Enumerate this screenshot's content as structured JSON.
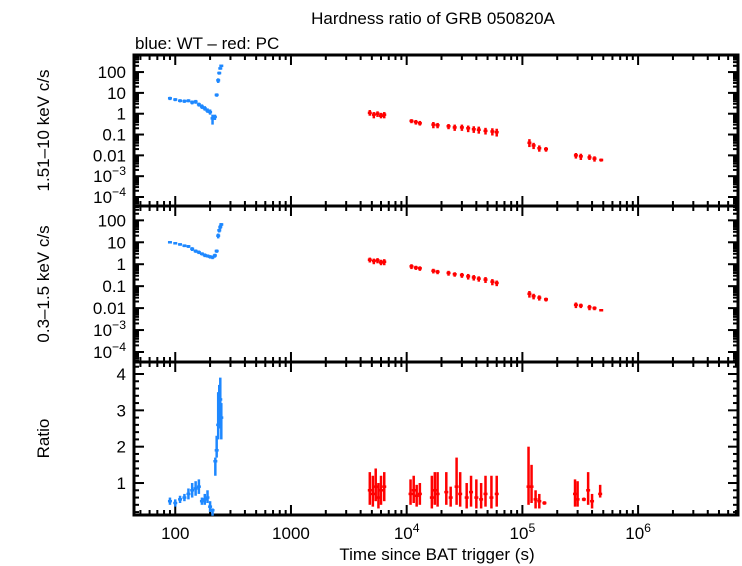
{
  "chart_data": [
    {
      "type": "scatter",
      "title": "Hardness ratio of GRB 050820A",
      "subtitle": "blue: WT – red: PC",
      "ylabel": "1.51–10 keV c/s",
      "yscale": "log",
      "xscale": "log",
      "ylim": [
        3.7e-05,
        660
      ],
      "yticks": [
        {
          "v": 100,
          "label": "100"
        },
        {
          "v": 10,
          "label": "10"
        },
        {
          "v": 1,
          "label": "1"
        },
        {
          "v": 0.1,
          "label": "0.1"
        },
        {
          "v": 0.01,
          "label": "0.01"
        },
        {
          "v": 0.001,
          "label": "10",
          "sup": "−3"
        },
        {
          "v": 0.0001,
          "label": "10",
          "sup": "−4"
        }
      ],
      "series": [
        {
          "mode": "WT",
          "color": "#1e88ff",
          "points": [
            [
              90,
              5.5,
              4.5,
              6.5
            ],
            [
              100,
              4.8,
              4,
              5.6
            ],
            [
              110,
              4.2,
              3.5,
              5
            ],
            [
              120,
              4,
              3.3,
              4.8
            ],
            [
              130,
              4.2,
              3.5,
              5
            ],
            [
              140,
              3.5,
              2.8,
              4.3
            ],
            [
              150,
              3.8,
              3,
              4.6
            ],
            [
              160,
              2.8,
              2.2,
              3.4
            ],
            [
              170,
              2.2,
              1.7,
              2.8
            ],
            [
              180,
              1.8,
              1.4,
              2.3
            ],
            [
              190,
              1.4,
              1.1,
              1.8
            ],
            [
              200,
              1.2,
              0.9,
              1.6
            ],
            [
              210,
              0.6,
              0.3,
              0.9
            ],
            [
              220,
              0.7,
              0.5,
              0.9
            ],
            [
              228,
              8,
              6.5,
              9.5
            ],
            [
              235,
              40,
              30,
              50
            ],
            [
              240,
              90,
              75,
              105
            ],
            [
              245,
              150,
              130,
              170
            ],
            [
              250,
              200,
              180,
              220
            ]
          ]
        },
        {
          "mode": "PC",
          "color": "#ff0000",
          "points": [
            [
              4800,
              1.1,
              0.8,
              1.5
            ],
            [
              5200,
              0.9,
              0.6,
              1.2
            ],
            [
              5600,
              1.0,
              0.7,
              1.3
            ],
            [
              6000,
              0.8,
              0.6,
              1.1
            ],
            [
              6400,
              0.9,
              0.6,
              1.2
            ],
            [
              11000,
              0.45,
              0.35,
              0.55
            ],
            [
              12000,
              0.4,
              0.3,
              0.5
            ],
            [
              13000,
              0.35,
              0.27,
              0.45
            ],
            [
              17000,
              0.3,
              0.2,
              0.4
            ],
            [
              18500,
              0.28,
              0.2,
              0.36
            ],
            [
              23000,
              0.25,
              0.18,
              0.32
            ],
            [
              26000,
              0.22,
              0.15,
              0.3
            ],
            [
              30000,
              0.22,
              0.15,
              0.3
            ],
            [
              34000,
              0.2,
              0.13,
              0.27
            ],
            [
              38000,
              0.18,
              0.12,
              0.25
            ],
            [
              42000,
              0.17,
              0.11,
              0.24
            ],
            [
              48000,
              0.15,
              0.1,
              0.21
            ],
            [
              55000,
              0.14,
              0.09,
              0.2
            ],
            [
              60000,
              0.13,
              0.08,
              0.19
            ],
            [
              115000,
              0.04,
              0.025,
              0.06
            ],
            [
              125000,
              0.03,
              0.02,
              0.04
            ],
            [
              140000,
              0.022,
              0.015,
              0.03
            ],
            [
              160000,
              0.02,
              0.015,
              0.025
            ],
            [
              290000,
              0.01,
              0.007,
              0.013
            ],
            [
              320000,
              0.009,
              0.006,
              0.012
            ],
            [
              380000,
              0.008,
              0.006,
              0.011
            ],
            [
              420000,
              0.007,
              0.005,
              0.009
            ],
            [
              480000,
              0.006,
              0.005,
              0.007
            ]
          ]
        }
      ]
    },
    {
      "type": "scatter",
      "ylabel": "0.3–1.5 keV c/s",
      "yscale": "log",
      "xscale": "log",
      "ylim": [
        3.5e-05,
        450
      ],
      "yticks": [
        {
          "v": 100,
          "label": "100"
        },
        {
          "v": 10,
          "label": "10"
        },
        {
          "v": 1,
          "label": "1"
        },
        {
          "v": 0.1,
          "label": "0.1"
        },
        {
          "v": 0.01,
          "label": "0.01"
        },
        {
          "v": 0.001,
          "label": "10",
          "sup": "−3"
        },
        {
          "v": 0.0001,
          "label": "10",
          "sup": "−4"
        }
      ],
      "series": [
        {
          "mode": "WT",
          "color": "#1e88ff",
          "points": [
            [
              90,
              10,
              9,
              11
            ],
            [
              100,
              9,
              8,
              10
            ],
            [
              110,
              8,
              7,
              9
            ],
            [
              120,
              7,
              6,
              8
            ],
            [
              130,
              6.5,
              5.5,
              7.5
            ],
            [
              140,
              5,
              4,
              6
            ],
            [
              150,
              4,
              3.3,
              4.7
            ],
            [
              160,
              3.5,
              2.9,
              4.2
            ],
            [
              170,
              3,
              2.5,
              3.5
            ],
            [
              180,
              2.6,
              2.1,
              3.1
            ],
            [
              190,
              2.4,
              2,
              2.8
            ],
            [
              200,
              2.2,
              1.8,
              2.6
            ],
            [
              210,
              2.1,
              1.7,
              2.5
            ],
            [
              220,
              2.5,
              2,
              3
            ],
            [
              228,
              4,
              3.3,
              4.7
            ],
            [
              235,
              20,
              15,
              25
            ],
            [
              240,
              35,
              28,
              42
            ],
            [
              245,
              50,
              40,
              60
            ],
            [
              250,
              65,
              55,
              75
            ]
          ]
        },
        {
          "mode": "PC",
          "color": "#ff0000",
          "points": [
            [
              4800,
              1.6,
              1.2,
              2
            ],
            [
              5200,
              1.4,
              1,
              1.8
            ],
            [
              5600,
              1.5,
              1.1,
              1.9
            ],
            [
              6000,
              1.2,
              0.9,
              1.6
            ],
            [
              6400,
              1.3,
              0.9,
              1.7
            ],
            [
              11000,
              0.8,
              0.6,
              1
            ],
            [
              12000,
              0.7,
              0.55,
              0.85
            ],
            [
              13000,
              0.65,
              0.5,
              0.8
            ],
            [
              17000,
              0.5,
              0.38,
              0.62
            ],
            [
              18500,
              0.45,
              0.35,
              0.55
            ],
            [
              23000,
              0.4,
              0.3,
              0.5
            ],
            [
              26000,
              0.35,
              0.27,
              0.43
            ],
            [
              30000,
              0.32,
              0.24,
              0.4
            ],
            [
              34000,
              0.28,
              0.2,
              0.36
            ],
            [
              38000,
              0.25,
              0.18,
              0.32
            ],
            [
              42000,
              0.22,
              0.16,
              0.28
            ],
            [
              48000,
              0.2,
              0.14,
              0.26
            ],
            [
              55000,
              0.16,
              0.11,
              0.21
            ],
            [
              60000,
              0.14,
              0.1,
              0.18
            ],
            [
              115000,
              0.045,
              0.03,
              0.06
            ],
            [
              125000,
              0.035,
              0.025,
              0.045
            ],
            [
              140000,
              0.03,
              0.022,
              0.038
            ],
            [
              160000,
              0.025,
              0.02,
              0.03
            ],
            [
              290000,
              0.014,
              0.01,
              0.018
            ],
            [
              320000,
              0.013,
              0.01,
              0.016
            ],
            [
              380000,
              0.011,
              0.008,
              0.014
            ],
            [
              420000,
              0.01,
              0.008,
              0.012
            ],
            [
              480000,
              0.008,
              0.007,
              0.009
            ]
          ]
        }
      ]
    },
    {
      "type": "scatter",
      "ylabel": "Ratio",
      "yscale": "linear",
      "xscale": "log",
      "ylim": [
        0.12,
        4.33
      ],
      "yticks": [
        {
          "v": 1,
          "label": "1"
        },
        {
          "v": 2,
          "label": "2"
        },
        {
          "v": 3,
          "label": "3"
        },
        {
          "v": 4,
          "label": "4"
        }
      ],
      "xlabel": "Time since BAT trigger (s)",
      "xlim": [
        44,
        7300000
      ],
      "xticks": [
        {
          "v": 100,
          "label": "100"
        },
        {
          "v": 1000,
          "label": "1000"
        },
        {
          "v": 10000,
          "label": "10",
          "sup": "4"
        },
        {
          "v": 100000,
          "label": "10",
          "sup": "5"
        },
        {
          "v": 1000000,
          "label": "10",
          "sup": "6"
        }
      ],
      "series": [
        {
          "mode": "WT",
          "color": "#1e88ff",
          "points": [
            [
              90,
              0.5,
              0.4,
              0.6
            ],
            [
              100,
              0.45,
              0.35,
              0.55
            ],
            [
              110,
              0.55,
              0.45,
              0.65
            ],
            [
              120,
              0.6,
              0.5,
              0.7
            ],
            [
              130,
              0.7,
              0.55,
              0.85
            ],
            [
              140,
              0.8,
              0.6,
              1.0
            ],
            [
              150,
              0.85,
              0.65,
              1.05
            ],
            [
              160,
              0.9,
              0.7,
              1.1
            ],
            [
              170,
              0.5,
              0.4,
              0.6
            ],
            [
              180,
              0.55,
              0.4,
              0.7
            ],
            [
              190,
              0.6,
              0.45,
              0.8
            ],
            [
              200,
              0.35,
              0.2,
              0.5
            ],
            [
              210,
              0.25,
              0.1,
              0.3
            ],
            [
              222,
              1.6,
              1.2,
              1.7
            ],
            [
              228,
              1.9,
              1.7,
              2.3
            ],
            [
              235,
              2.6,
              2.2,
              3.5
            ],
            [
              240,
              3.0,
              2.5,
              3.7
            ],
            [
              245,
              3.3,
              2.8,
              3.9
            ],
            [
              250,
              2.8,
              2.2,
              3.2
            ]
          ]
        },
        {
          "mode": "PC",
          "color": "#ff0000",
          "points": [
            [
              4800,
              0.8,
              0.4,
              1.3
            ],
            [
              5100,
              0.7,
              0.35,
              1.2
            ],
            [
              5400,
              0.9,
              0.5,
              1.4
            ],
            [
              5700,
              0.6,
              0.3,
              1.0
            ],
            [
              6000,
              0.8,
              0.4,
              1.2
            ],
            [
              6400,
              0.9,
              0.5,
              1.3
            ],
            [
              10800,
              0.7,
              0.4,
              1.1
            ],
            [
              11500,
              0.8,
              0.45,
              1.2
            ],
            [
              12200,
              0.65,
              0.35,
              0.95
            ],
            [
              13000,
              0.7,
              0.4,
              1.0
            ],
            [
              16500,
              0.6,
              0.3,
              1.2
            ],
            [
              17500,
              0.8,
              0.4,
              1.3
            ],
            [
              18500,
              0.7,
              0.35,
              1.3
            ],
            [
              22000,
              0.75,
              0.4,
              1.3
            ],
            [
              24000,
              0.6,
              0.35,
              0.9
            ],
            [
              27000,
              0.9,
              0.4,
              1.7
            ],
            [
              29000,
              0.7,
              0.35,
              1.3
            ],
            [
              33000,
              0.6,
              0.3,
              1.0
            ],
            [
              36000,
              0.75,
              0.35,
              1.2
            ],
            [
              40000,
              0.6,
              0.3,
              1.1
            ],
            [
              44000,
              0.55,
              0.3,
              1.0
            ],
            [
              48000,
              0.7,
              0.35,
              1.2
            ],
            [
              54000,
              0.6,
              0.3,
              1.2
            ],
            [
              60000,
              0.7,
              0.35,
              1.2
            ],
            [
              113000,
              0.9,
              0.4,
              2.0
            ],
            [
              120000,
              0.9,
              0.45,
              1.5
            ],
            [
              130000,
              0.55,
              0.3,
              0.8
            ],
            [
              140000,
              0.5,
              0.3,
              0.7
            ],
            [
              155000,
              0.45,
              0.4,
              0.5
            ],
            [
              285000,
              0.7,
              0.35,
              1.1
            ],
            [
              300000,
              0.55,
              0.35,
              1.05
            ],
            [
              340000,
              0.55,
              0.5,
              0.6
            ],
            [
              370000,
              0.8,
              0.4,
              1.3
            ],
            [
              400000,
              0.5,
              0.3,
              0.7
            ],
            [
              470000,
              0.7,
              0.6,
              0.95
            ]
          ]
        }
      ]
    }
  ]
}
